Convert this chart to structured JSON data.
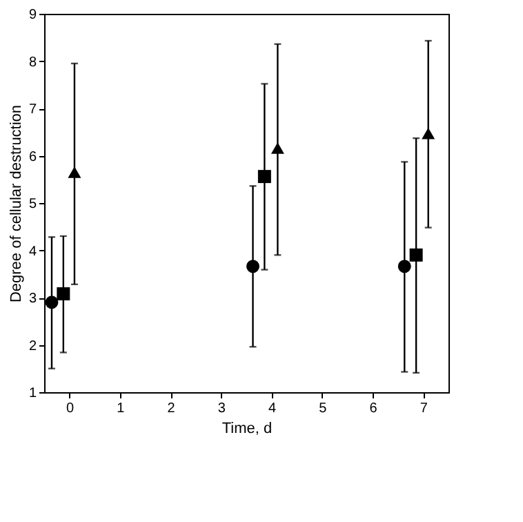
{
  "chart_data": {
    "type": "scatter",
    "xlabel": "Time, d",
    "ylabel": "Degree of cellular destruction",
    "xlim": [
      -0.5,
      7.5
    ],
    "xticks": [
      0,
      1,
      2,
      3,
      4,
      5,
      6,
      7
    ],
    "ylim": [
      1,
      9
    ],
    "yticks": [
      1,
      2,
      3,
      4,
      5,
      6,
      7,
      8,
      9
    ],
    "grid": false,
    "legend": false,
    "series": [
      {
        "color": "#000000",
        "marker": "circle",
        "x": [
          -0.35,
          3.63,
          6.63
        ],
        "values": [
          2.9,
          3.66,
          3.66
        ],
        "errors": [
          [
            1.5,
            4.28
          ],
          [
            1.96,
            5.36
          ],
          [
            1.43,
            5.87
          ]
        ]
      },
      {
        "color": "#000000",
        "marker": "square",
        "x": [
          -0.12,
          3.86,
          6.86
        ],
        "values": [
          3.08,
          5.56,
          3.9
        ],
        "errors": [
          [
            1.84,
            4.3
          ],
          [
            3.59,
            7.52
          ],
          [
            1.41,
            6.37
          ]
        ]
      },
      {
        "color": "#000000",
        "marker": "triangle",
        "x": [
          0.1,
          4.12,
          7.1
        ],
        "values": [
          5.65,
          6.16,
          6.47
        ],
        "errors": [
          [
            3.28,
            7.95
          ],
          [
            3.9,
            8.36
          ],
          [
            4.48,
            8.43
          ]
        ]
      }
    ]
  }
}
